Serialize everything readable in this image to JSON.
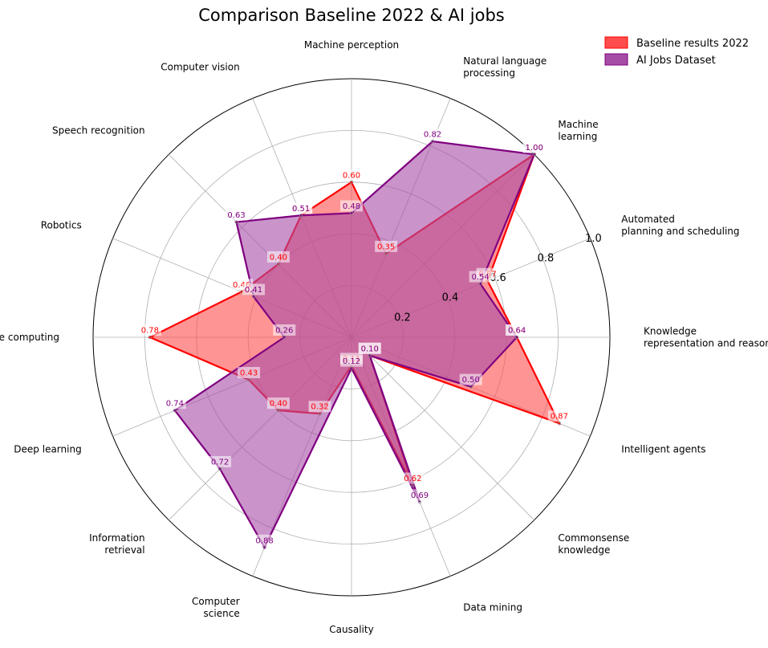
{
  "chart_data": {
    "type": "radar",
    "title": "Comparison Baseline 2022 & AI jobs",
    "categories": [
      "Machine perception",
      "Natural language\nprocessing",
      "Machine\nlearning",
      "Automated\nplanning and scheduling",
      "Knowledge\nrepresentation and reasoning",
      "Intelligent agents",
      "Commonsense\nknowledge",
      "Data mining",
      "Causality",
      "Computer\nscience",
      "Information\nretrieval",
      "Deep learning",
      "Affective computing",
      "Robotics",
      "Speech recognition",
      "Computer vision"
    ],
    "series": [
      {
        "name": "Baseline results 2022",
        "color": "#ff0000",
        "fill": "#ff4d4d",
        "values": [
          0.6,
          0.35,
          1.0,
          0.57,
          0.64,
          0.87,
          0.1,
          0.62,
          0.11,
          0.32,
          0.4,
          0.43,
          0.78,
          0.46,
          0.4,
          0.51
        ]
      },
      {
        "name": "AI Jobs Dataset",
        "color": "#800080",
        "fill": "#a64ca6",
        "values": [
          0.48,
          0.82,
          1.0,
          0.54,
          0.64,
          0.5,
          0.1,
          0.69,
          0.12,
          0.88,
          0.72,
          0.74,
          0.26,
          0.41,
          0.63,
          0.51
        ]
      }
    ],
    "rmax": 1.0,
    "r_ticks": [
      0.2,
      0.4,
      0.6,
      0.8,
      1.0
    ],
    "r_tick_labels": [
      "0.2",
      "0.4",
      "0.6",
      "0.8",
      "1.0"
    ],
    "grid": true,
    "legend": "top-right"
  }
}
